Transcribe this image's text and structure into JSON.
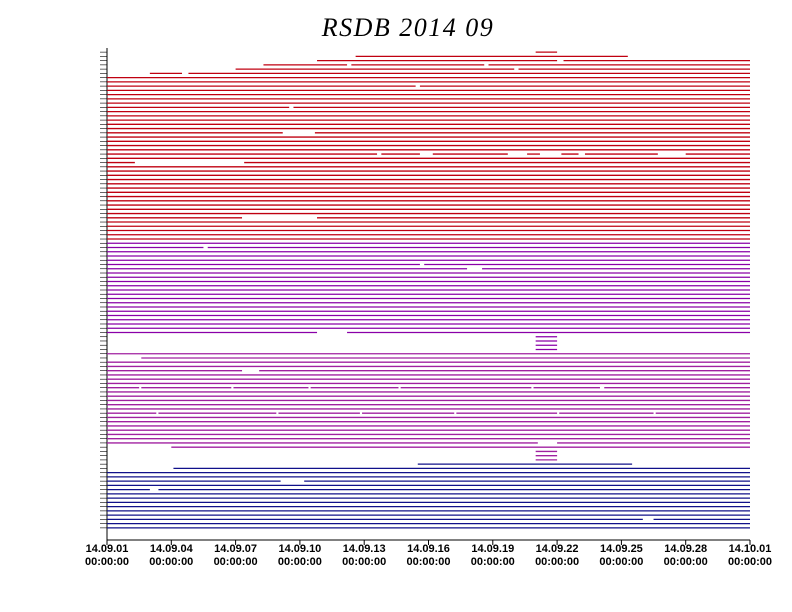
{
  "chart_data": {
    "type": "availability",
    "title": "RSDB  2014  09",
    "xlim": [
      0,
      30
    ],
    "xticks": [
      {
        "value": 0,
        "label": "14.09.01",
        "time": "00:00:00"
      },
      {
        "value": 3,
        "label": "14.09.04",
        "time": "00:00:00"
      },
      {
        "value": 6,
        "label": "14.09.07",
        "time": "00:00:00"
      },
      {
        "value": 9,
        "label": "14.09.10",
        "time": "00:00:00"
      },
      {
        "value": 12,
        "label": "14.09.13",
        "time": "00:00:00"
      },
      {
        "value": 15,
        "label": "14.09.16",
        "time": "00:00:00"
      },
      {
        "value": 18,
        "label": "14.09.19",
        "time": "00:00:00"
      },
      {
        "value": 21,
        "label": "14.09.22",
        "time": "00:00:00"
      },
      {
        "value": 24,
        "label": "14.09.25",
        "time": "00:00:00"
      },
      {
        "value": 27,
        "label": "14.09.28",
        "time": "00:00:00"
      },
      {
        "value": 30,
        "label": "14.10.01",
        "time": "00:00:00"
      }
    ],
    "groups": [
      {
        "color": "#c00010",
        "rows": [
          [
            [
              20,
              21
            ]
          ],
          [
            [
              11.6,
              24.3
            ]
          ],
          [
            [
              9.8,
              21
            ],
            [
              21.3,
              30
            ]
          ],
          [
            [
              7.3,
              11.2
            ],
            [
              11.4,
              17.6
            ],
            [
              17.8,
              30
            ]
          ],
          [
            [
              6,
              19
            ],
            [
              19.2,
              30
            ]
          ],
          [
            [
              2,
              3.5
            ],
            [
              3.8,
              30
            ]
          ],
          [
            [
              0,
              30
            ]
          ],
          [
            [
              0,
              30
            ]
          ],
          [
            [
              0,
              14.4
            ],
            [
              14.6,
              30
            ]
          ],
          [
            [
              0,
              30
            ]
          ],
          [
            [
              0,
              30
            ]
          ],
          [
            [
              0,
              30
            ]
          ],
          [
            [
              0,
              30
            ]
          ],
          [
            [
              0,
              8.5
            ],
            [
              8.7,
              30
            ]
          ],
          [
            [
              0,
              30
            ]
          ],
          [
            [
              0,
              30
            ]
          ],
          [
            [
              0,
              30
            ]
          ],
          [
            [
              0,
              30
            ]
          ],
          [
            [
              0,
              30
            ]
          ],
          [
            [
              0,
              8.2
            ],
            [
              9.7,
              30
            ]
          ],
          [
            [
              0,
              30
            ]
          ],
          [
            [
              0,
              30
            ]
          ],
          [
            [
              0,
              30
            ]
          ],
          [
            [
              0,
              30
            ]
          ],
          [
            [
              0,
              12.6
            ],
            [
              12.8,
              14.6
            ],
            [
              15.2,
              18.7
            ],
            [
              19.6,
              20.2
            ],
            [
              21.2,
              22
            ],
            [
              22.3,
              25.7
            ],
            [
              27,
              30
            ]
          ],
          [
            [
              0,
              30
            ]
          ],
          [
            [
              0,
              1.3
            ],
            [
              6.4,
              30
            ]
          ],
          [
            [
              0,
              30
            ]
          ],
          [
            [
              0,
              30
            ]
          ],
          [
            [
              0,
              30
            ]
          ],
          [
            [
              0,
              30
            ]
          ],
          [
            [
              0,
              30
            ]
          ],
          [
            [
              0,
              30
            ]
          ],
          [
            [
              0,
              30
            ]
          ],
          [
            [
              0,
              30
            ]
          ],
          [
            [
              0,
              30
            ]
          ],
          [
            [
              0,
              30
            ]
          ],
          [
            [
              0,
              30
            ]
          ],
          [
            [
              0,
              30
            ]
          ],
          [
            [
              0,
              6.3
            ],
            [
              9.8,
              30
            ]
          ],
          [
            [
              0,
              30
            ]
          ],
          [
            [
              0,
              30
            ]
          ],
          [
            [
              0,
              30
            ]
          ],
          [
            [
              0,
              30
            ]
          ],
          [
            [
              0,
              30
            ]
          ]
        ]
      },
      {
        "color": "#8a00a8",
        "rows": [
          [
            [
              0,
              30
            ]
          ],
          [
            [
              0,
              4.5
            ],
            [
              4.7,
              30
            ]
          ],
          [
            [
              0,
              30
            ]
          ],
          [
            [
              0,
              30
            ]
          ],
          [
            [
              0,
              30
            ]
          ],
          [
            [
              0,
              14.6
            ],
            [
              14.8,
              30
            ]
          ],
          [
            [
              0,
              16.8
            ],
            [
              17.5,
              30
            ]
          ],
          [
            [
              0,
              30
            ]
          ],
          [
            [
              0,
              30
            ]
          ],
          [
            [
              0,
              30
            ]
          ],
          [
            [
              0,
              30
            ]
          ],
          [
            [
              0,
              30
            ]
          ],
          [
            [
              0,
              30
            ]
          ],
          [
            [
              0,
              30
            ]
          ],
          [
            [
              0,
              30
            ]
          ],
          [
            [
              0,
              30
            ]
          ],
          [
            [
              0,
              30
            ]
          ],
          [
            [
              0,
              30
            ]
          ],
          [
            [
              0,
              30
            ]
          ],
          [
            [
              0,
              30
            ]
          ],
          [
            [
              0,
              30
            ]
          ],
          [
            [
              0,
              9.8
            ],
            [
              11.2,
              30
            ]
          ],
          [
            [
              20,
              21
            ]
          ],
          [
            [
              20,
              21
            ]
          ],
          [
            [
              20,
              21
            ]
          ],
          [
            [
              20,
              21
            ]
          ]
        ]
      },
      {
        "color": "#a020a0",
        "rows": [
          [
            [
              0,
              30
            ]
          ],
          [
            [
              1.6,
              30
            ]
          ],
          [
            [
              0,
              30
            ]
          ],
          [
            [
              0,
              30
            ]
          ],
          [
            [
              0,
              6.3
            ],
            [
              7.1,
              30
            ]
          ],
          [
            [
              0,
              30
            ]
          ],
          [
            [
              0,
              30
            ]
          ],
          [
            [
              0,
              30
            ]
          ],
          [
            [
              0,
              1.5
            ],
            [
              1.6,
              5.8
            ],
            [
              5.9,
              9.4
            ],
            [
              9.5,
              13.6
            ],
            [
              13.7,
              19.8
            ],
            [
              19.9,
              23
            ],
            [
              23.2,
              30
            ]
          ],
          [
            [
              0,
              30
            ]
          ],
          [
            [
              0,
              30
            ]
          ],
          [
            [
              0,
              30
            ]
          ],
          [
            [
              0,
              30
            ]
          ],
          [
            [
              0,
              30
            ]
          ],
          [
            [
              0,
              2.3
            ],
            [
              2.4,
              7.9
            ],
            [
              8,
              11.8
            ],
            [
              11.9,
              16.2
            ],
            [
              16.3,
              21
            ],
            [
              21.1,
              25.5
            ],
            [
              25.6,
              30
            ]
          ],
          [
            [
              0,
              30
            ]
          ],
          [
            [
              0,
              30
            ]
          ],
          [
            [
              0,
              30
            ]
          ],
          [
            [
              0,
              30
            ]
          ],
          [
            [
              0,
              30
            ]
          ],
          [
            [
              0,
              30
            ]
          ],
          [
            [
              0,
              20.1
            ],
            [
              21,
              30
            ]
          ],
          [
            [
              3,
              30
            ]
          ],
          [
            [
              20,
              21
            ]
          ],
          [
            [
              20,
              21
            ]
          ],
          [
            [
              20,
              21
            ]
          ]
        ]
      },
      {
        "color": "#10108a",
        "rows": [
          [
            [
              14.5,
              24.5
            ]
          ],
          [
            [
              3.1,
              30
            ]
          ],
          [
            [
              0,
              30
            ]
          ],
          [
            [
              0,
              30
            ]
          ],
          [
            [
              0,
              8.1
            ],
            [
              9.2,
              30
            ]
          ],
          [
            [
              0,
              30
            ]
          ],
          [
            [
              0,
              2
            ],
            [
              2.4,
              30
            ]
          ],
          [
            [
              0,
              30
            ]
          ],
          [
            [
              0,
              30
            ]
          ],
          [
            [
              0,
              30
            ]
          ],
          [
            [
              0,
              30
            ]
          ],
          [
            [
              0,
              30
            ]
          ],
          [
            [
              0,
              30
            ]
          ],
          [
            [
              0,
              25
            ],
            [
              25.5,
              30
            ]
          ],
          [
            [
              0,
              30
            ]
          ],
          [
            [
              0,
              30
            ]
          ]
        ]
      }
    ]
  }
}
